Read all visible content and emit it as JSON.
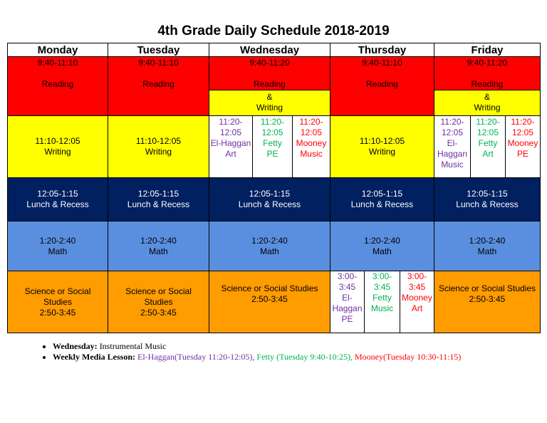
{
  "header": {
    "title": "4th Grade Daily Schedule 2018-2019"
  },
  "table": {
    "days": [
      "Monday",
      "Tuesday",
      "Wednesday",
      "Thursday",
      "Friday"
    ],
    "cells": {
      "mon_reading": "9:40-11:10\n\nReading",
      "tue_reading": "9:40-11:10\n\nReading",
      "wed_reading": "9:40-11:20\n\nReading",
      "wed_writing": "&\nWriting",
      "thu_reading": "9:40-11:10\n\nReading",
      "fri_reading": "9:40-11:20\n\nReading",
      "fri_writing": "&\nWriting",
      "mon_writing": "11:10-12:05\nWriting",
      "tue_writing": "11:10-12:05\nWriting",
      "wed_special_1": "11:20-\n12:05\nEl-Haggan\nArt",
      "wed_special_2": "11:20-\n12:05\nFetty\nPE",
      "wed_special_3": "11:20-\n12:05\nMooney\nMusic",
      "thu_writing": "11:10-12:05\nWriting",
      "fri_special_1": "11:20-\n12:05\nEl-\nHaggan\nMusic",
      "fri_special_2": "11:20-\n12:05\nFetty\nArt",
      "fri_special_3": "11:20-\n12:05\nMooney\nPE",
      "mon_lunch": "12:05-1:15\nLunch & Recess",
      "tue_lunch": "12:05-1:15\nLunch & Recess",
      "wed_lunch": "12:05-1:15\nLunch & Recess",
      "thu_lunch": "12:05-1:15\nLunch & Recess",
      "fri_lunch": "12:05-1:15\nLunch & Recess",
      "mon_math": "1:20-2:40\nMath",
      "tue_math": "1:20-2:40\nMath",
      "wed_math": "1:20-2:40\nMath",
      "thu_math": "1:20-2:40\nMath",
      "fri_math": "1:20-2:40\nMath",
      "mon_science": "Science or Social\nStudies\n2:50-3:45",
      "tue_science": "Science or Social\nStudies\n2:50-3:45",
      "wed_science": "Science or Social Studies\n2:50-3:45",
      "thu_special_1": "3:00-\n3:45\nEl-\nHaggan\nPE",
      "thu_special_2": "3:00-3:45\nFetty\nMusic",
      "thu_special_3": "3:00-3:45\nMooney\nArt",
      "fri_science": "Science or Social Studies\n2:50-3:45"
    }
  },
  "notes": [
    {
      "label": "Wednesday:",
      "text": "Instrumental Music"
    },
    {
      "label": "Weekly Media Lesson:",
      "parts": [
        "El-Haggan(Tuesday 11:20-12:05),",
        "Fetty (Tuesday 9:40-10:25),",
        "Mooney(Tuesday 10:30-11:15)"
      ]
    }
  ]
}
